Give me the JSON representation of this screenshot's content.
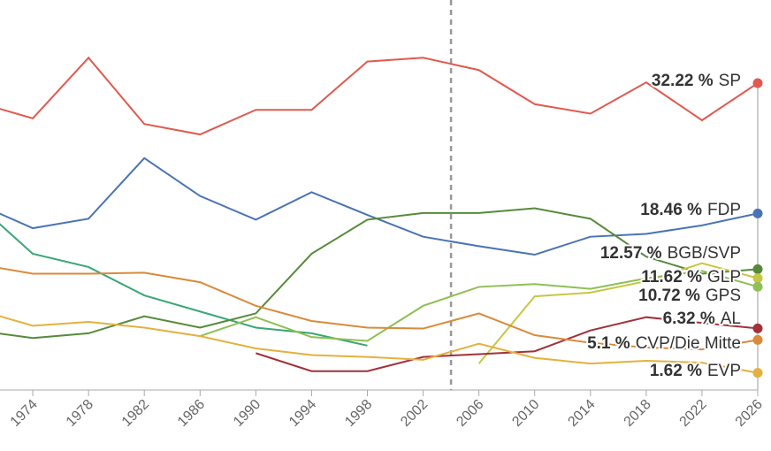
{
  "chart_data": {
    "type": "line",
    "x": [
      1970,
      1974,
      1978,
      1982,
      1986,
      1990,
      1994,
      1998,
      2002,
      2006,
      2010,
      2014,
      2018,
      2022,
      2026
    ],
    "xlim": [
      1970,
      2026
    ],
    "xticks": [
      1974,
      1978,
      1982,
      1986,
      1990,
      1994,
      1998,
      2002,
      2006,
      2010,
      2014,
      2018,
      2022,
      2026
    ],
    "ylim": [
      0,
      41
    ],
    "reference_x": 2004,
    "series": [
      {
        "name": "SP",
        "color": "#e05a4f",
        "values": [
          30.2,
          28.5,
          34.9,
          27.9,
          26.8,
          29.4,
          29.4,
          34.5,
          34.9,
          33.6,
          30.0,
          29.0,
          32.3,
          28.3,
          32.22
        ],
        "value_labels": [
          null,
          null,
          null,
          null,
          null,
          null,
          null,
          null,
          null,
          null,
          null,
          null,
          null,
          null,
          "32.22 %"
        ]
      },
      {
        "name": "FDP",
        "color": "#4a73b5",
        "values": [
          19.5,
          16.9,
          17.9,
          24.3,
          20.3,
          17.8,
          20.7,
          18.3,
          16.0,
          15.0,
          14.1,
          16.0,
          16.3,
          17.2,
          18.46
        ],
        "value_labels": [
          null,
          null,
          null,
          null,
          null,
          null,
          null,
          null,
          null,
          null,
          null,
          null,
          null,
          null,
          "18.46 %"
        ]
      },
      {
        "color": "#3aa676",
        "values": [
          19.5,
          14.2,
          12.8,
          9.8,
          8.1,
          6.4,
          5.8,
          4.5,
          null,
          null,
          null,
          null,
          null,
          null,
          null
        ]
      },
      {
        "name": "BGB/SVP",
        "color": "#568a3a",
        "values": [
          6.1,
          5.3,
          5.8,
          7.6,
          6.4,
          7.9,
          14.2,
          17.8,
          18.5,
          18.5,
          19.0,
          17.9,
          13.9,
          12.1,
          12.57
        ],
        "value_labels": [
          null,
          null,
          null,
          null,
          null,
          null,
          null,
          null,
          null,
          null,
          null,
          null,
          null,
          null,
          "12.57 %"
        ]
      },
      {
        "name": "GLP",
        "color": "#c5c843",
        "values": [
          null,
          null,
          null,
          null,
          null,
          null,
          null,
          null,
          null,
          2.6,
          9.7,
          10.1,
          11.3,
          13.2,
          11.62
        ],
        "value_labels": [
          null,
          null,
          null,
          null,
          null,
          null,
          null,
          null,
          null,
          null,
          null,
          null,
          null,
          null,
          "11.62 %"
        ]
      },
      {
        "name": "GPS",
        "color": "#8fbf55",
        "values": [
          null,
          null,
          null,
          null,
          5.5,
          7.5,
          5.4,
          5.0,
          8.7,
          10.7,
          11.0,
          10.5,
          11.6,
          12.4,
          10.72
        ],
        "value_labels": [
          null,
          null,
          null,
          null,
          null,
          null,
          null,
          null,
          null,
          null,
          null,
          null,
          null,
          null,
          "10.72 %"
        ]
      },
      {
        "name": "AL",
        "color": "#a3303a",
        "values": [
          null,
          null,
          null,
          null,
          null,
          3.7,
          1.8,
          1.8,
          3.3,
          3.6,
          3.9,
          6.1,
          7.5,
          6.9,
          6.32
        ],
        "value_labels": [
          null,
          null,
          null,
          null,
          null,
          null,
          null,
          null,
          null,
          null,
          null,
          null,
          null,
          null,
          "6.32 %"
        ]
      },
      {
        "name": "CVP/Die Mitte",
        "color": "#d98a3a",
        "values": [
          13.1,
          12.1,
          12.1,
          12.2,
          11.2,
          8.7,
          7.1,
          6.4,
          6.3,
          7.9,
          5.6,
          4.8,
          4.3,
          4.1,
          5.1
        ],
        "value_labels": [
          null,
          null,
          null,
          null,
          null,
          null,
          null,
          null,
          null,
          null,
          null,
          null,
          null,
          null,
          "5.1 %"
        ]
      },
      {
        "name": "EVP",
        "color": "#e3b13e",
        "values": [
          8.3,
          6.6,
          7.0,
          6.4,
          5.5,
          4.2,
          3.5,
          3.3,
          3.0,
          4.7,
          3.2,
          2.6,
          2.9,
          2.7,
          1.62
        ],
        "value_labels": [
          null,
          null,
          null,
          null,
          null,
          null,
          null,
          null,
          null,
          null,
          null,
          null,
          null,
          null,
          "1.62 %"
        ]
      }
    ]
  }
}
